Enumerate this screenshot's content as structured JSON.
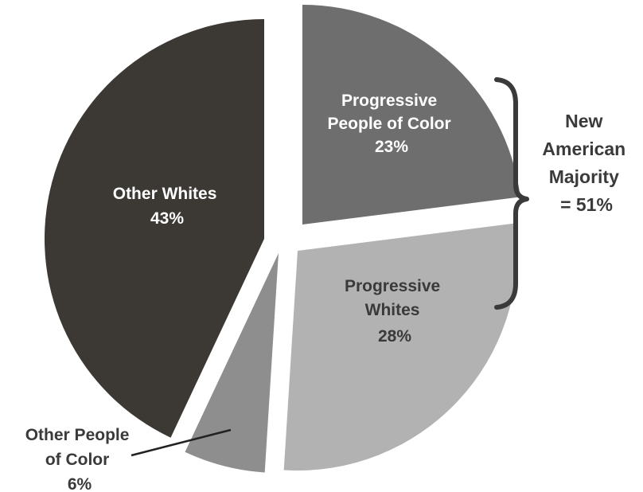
{
  "chart_data": {
    "type": "pie",
    "slices": [
      {
        "key": "ppoc",
        "label_lines": [
          "Progressive",
          "People of Color"
        ],
        "pct_text": "23%",
        "value": 23,
        "color": "#6e6e6e",
        "text_color": "#ffffff"
      },
      {
        "key": "pw",
        "label_lines": [
          "Progressive",
          "Whites"
        ],
        "pct_text": "28%",
        "value": 28,
        "color": "#b2b2b2",
        "text_color": "#3a3a3a"
      },
      {
        "key": "opoc",
        "label_lines": [
          "Other People",
          "of Color"
        ],
        "pct_text": "6%",
        "value": 6,
        "color": "#8e8e8e",
        "text_color": "#3a3a3a"
      },
      {
        "key": "ow",
        "label_lines": [
          "Other Whites"
        ],
        "pct_text": "43%",
        "value": 43,
        "color": "#3c3834",
        "text_color": "#ffffff"
      }
    ],
    "annotation": {
      "lines": [
        "New",
        "American",
        "Majority",
        "= 51%"
      ],
      "groups": [
        "Progressive People of Color",
        "Progressive Whites"
      ]
    }
  }
}
